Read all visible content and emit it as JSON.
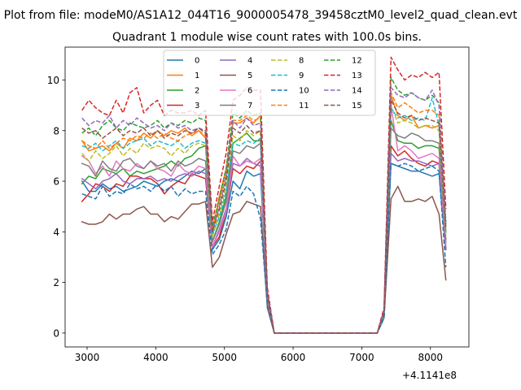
{
  "figure": {
    "suptitle": "Plot from file: modeM0/AS1A12_044T16_9000005478_39458cztM0_level2_quad_clean.evt",
    "title": "Quadrant 1 module wise count rates with 100.0s bins.",
    "offset_label": "+4.1141e8"
  },
  "chart_data": {
    "type": "line",
    "title": "Quadrant 1 module wise count rates with 100.0s bins.",
    "xlabel": "",
    "ylabel": "",
    "x_offset": 411410000,
    "xlim": [
      2680,
      8560
    ],
    "ylim": [
      -0.55,
      11.3
    ],
    "x_ticks": [
      3000,
      4000,
      5000,
      6000,
      7000,
      8000
    ],
    "y_ticks": [
      0,
      2,
      4,
      6,
      8,
      10
    ],
    "grid": false,
    "legend_position": "top-center",
    "legend_columns": 4,
    "x": [
      2925,
      3025,
      3125,
      3225,
      3325,
      3425,
      3525,
      3625,
      3725,
      3825,
      3925,
      4025,
      4125,
      4225,
      4325,
      4425,
      4525,
      4625,
      4725,
      4825,
      4925,
      5025,
      5125,
      5225,
      5325,
      5425,
      5525,
      5625,
      5725,
      5825,
      5925,
      6025,
      6125,
      6225,
      6325,
      6425,
      6525,
      6625,
      6725,
      6825,
      6925,
      7025,
      7125,
      7225,
      7325,
      7425,
      7525,
      7625,
      7725,
      7825,
      7925,
      8025,
      8125,
      8225
    ],
    "series": [
      {
        "name": "0",
        "color": "#1f77b4",
        "dash": false,
        "values": [
          6.0,
          5.6,
          5.6,
          5.9,
          5.7,
          5.8,
          5.6,
          5.7,
          5.8,
          6.0,
          5.9,
          5.8,
          6.0,
          6.1,
          6.0,
          6.2,
          6.4,
          6.3,
          6.5,
          3.3,
          3.7,
          4.6,
          6.0,
          5.7,
          6.4,
          6.2,
          6.3,
          1.3,
          0,
          0,
          0,
          0,
          0,
          0,
          0,
          0,
          0,
          0,
          0,
          0,
          0,
          0,
          0,
          0,
          0.7,
          6.7,
          6.6,
          6.5,
          6.4,
          6.4,
          6.3,
          6.2,
          6.3,
          3.3
        ]
      },
      {
        "name": "1",
        "color": "#ff7f0e",
        "dash": false,
        "values": [
          7.6,
          7.2,
          7.3,
          7.4,
          7.2,
          7.5,
          7.3,
          7.7,
          7.6,
          7.9,
          7.7,
          8.0,
          7.8,
          8.0,
          7.9,
          8.1,
          7.8,
          8.0,
          7.7,
          4.0,
          5.4,
          6.5,
          8.3,
          8.3,
          8.5,
          8.3,
          8.6,
          1.5,
          0,
          0,
          0,
          0,
          0,
          0,
          0,
          0,
          0,
          0,
          0,
          0,
          0,
          0,
          0,
          0,
          0.9,
          9.4,
          8.6,
          8.4,
          8.6,
          8.1,
          8.2,
          8.1,
          8.2,
          4.0
        ]
      },
      {
        "name": "2",
        "color": "#2ca02c",
        "dash": false,
        "values": [
          5.9,
          6.2,
          6.1,
          6.5,
          6.4,
          6.3,
          6.5,
          6.2,
          6.4,
          6.3,
          6.4,
          6.5,
          6.6,
          6.8,
          6.6,
          6.9,
          7.0,
          7.3,
          7.4,
          3.6,
          4.4,
          5.4,
          7.5,
          7.7,
          7.9,
          7.6,
          7.6,
          1.4,
          0,
          0,
          0,
          0,
          0,
          0,
          0,
          0,
          0,
          0,
          0,
          0,
          0,
          0,
          0,
          0,
          0.8,
          8.4,
          7.6,
          7.5,
          7.5,
          7.3,
          7.4,
          7.4,
          7.3,
          3.6
        ]
      },
      {
        "name": "3",
        "color": "#d62728",
        "dash": false,
        "values": [
          5.2,
          5.5,
          5.9,
          5.8,
          5.6,
          5.9,
          5.8,
          6.2,
          6.2,
          6.1,
          6.1,
          5.9,
          5.5,
          5.8,
          6.0,
          5.9,
          6.3,
          6.2,
          6.1,
          3.4,
          3.8,
          4.8,
          6.5,
          6.3,
          6.6,
          6.5,
          6.8,
          1.3,
          0,
          0,
          0,
          0,
          0,
          0,
          0,
          0,
          0,
          0,
          0,
          0,
          0,
          0,
          0,
          0,
          0.7,
          7.4,
          7.0,
          7.2,
          6.9,
          6.7,
          6.6,
          6.8,
          6.7,
          3.3
        ]
      },
      {
        "name": "4",
        "color": "#9467bd",
        "dash": false,
        "values": [
          6.1,
          5.9,
          5.7,
          6.0,
          6.1,
          6.3,
          6.0,
          5.9,
          6.1,
          6.1,
          6.2,
          6.0,
          6.1,
          6.0,
          6.2,
          6.3,
          6.2,
          6.4,
          6.3,
          3.4,
          4.1,
          4.9,
          6.7,
          6.6,
          6.9,
          6.7,
          6.6,
          1.3,
          0,
          0,
          0,
          0,
          0,
          0,
          0,
          0,
          0,
          0,
          0,
          0,
          0,
          0,
          0,
          0,
          0.7,
          7.1,
          6.8,
          6.9,
          6.8,
          6.8,
          6.7,
          6.6,
          6.7,
          3.3
        ]
      },
      {
        "name": "5",
        "color": "#8c564b",
        "dash": false,
        "values": [
          4.4,
          4.3,
          4.3,
          4.4,
          4.7,
          4.5,
          4.7,
          4.7,
          4.9,
          5.0,
          4.7,
          4.7,
          4.4,
          4.6,
          4.5,
          4.8,
          5.1,
          5.1,
          5.2,
          2.6,
          3.0,
          3.9,
          4.7,
          4.8,
          5.2,
          5.1,
          5.0,
          1.0,
          0,
          0,
          0,
          0,
          0,
          0,
          0,
          0,
          0,
          0,
          0,
          0,
          0,
          0,
          0,
          0,
          0.6,
          5.3,
          5.8,
          5.2,
          5.2,
          5.3,
          5.2,
          5.4,
          4.7,
          2.1
        ]
      },
      {
        "name": "6",
        "color": "#e377c2",
        "dash": false,
        "values": [
          7.0,
          6.8,
          6.3,
          6.6,
          6.2,
          6.8,
          6.5,
          6.4,
          6.7,
          6.5,
          6.8,
          6.5,
          6.4,
          6.2,
          6.7,
          6.4,
          6.3,
          6.6,
          6.5,
          3.4,
          4.0,
          4.8,
          7.0,
          6.6,
          6.8,
          6.7,
          6.9,
          1.3,
          0,
          0,
          0,
          0,
          0,
          0,
          0,
          0,
          0,
          0,
          0,
          0,
          0,
          0,
          0,
          0,
          0.7,
          9.0,
          7.2,
          7.4,
          7.2,
          6.9,
          7.0,
          7.1,
          6.9,
          3.5
        ]
      },
      {
        "name": "7",
        "color": "#7f7f7f",
        "dash": false,
        "values": [
          6.7,
          6.6,
          6.2,
          6.8,
          6.5,
          6.4,
          6.8,
          6.9,
          6.6,
          6.5,
          6.8,
          6.6,
          6.7,
          6.4,
          6.8,
          6.6,
          6.7,
          6.9,
          6.8,
          3.6,
          4.3,
          5.2,
          7.2,
          7.1,
          7.4,
          7.3,
          7.5,
          1.4,
          0,
          0,
          0,
          0,
          0,
          0,
          0,
          0,
          0,
          0,
          0,
          0,
          0,
          0,
          0,
          0,
          0.8,
          8.1,
          7.8,
          7.7,
          7.9,
          7.8,
          7.6,
          7.6,
          7.5,
          3.7
        ]
      },
      {
        "name": "8",
        "color": "#bcbd22",
        "dash": true,
        "values": [
          7.1,
          6.8,
          7.2,
          6.9,
          7.1,
          7.4,
          7.0,
          7.3,
          7.1,
          7.5,
          7.3,
          7.4,
          7.3,
          7.0,
          7.3,
          7.1,
          7.4,
          7.5,
          7.4,
          3.8,
          4.7,
          5.8,
          7.8,
          7.6,
          8.0,
          7.8,
          8.0,
          1.5,
          0,
          0,
          0,
          0,
          0,
          0,
          0,
          0,
          0,
          0,
          0,
          0,
          0,
          0,
          0,
          0,
          0.8,
          9.0,
          8.3,
          8.4,
          8.3,
          8.1,
          8.2,
          8.2,
          8.0,
          3.9
        ]
      },
      {
        "name": "9",
        "color": "#17becf",
        "dash": true,
        "values": [
          7.4,
          7.3,
          7.5,
          7.2,
          7.4,
          7.6,
          7.3,
          7.5,
          7.6,
          7.7,
          7.4,
          7.6,
          7.5,
          7.4,
          7.6,
          7.3,
          7.5,
          7.6,
          7.5,
          3.9,
          4.6,
          5.6,
          7.5,
          7.4,
          7.6,
          7.5,
          7.7,
          1.5,
          0,
          0,
          0,
          0,
          0,
          0,
          0,
          0,
          0,
          0,
          0,
          0,
          0,
          0,
          0,
          0,
          0.8,
          8.9,
          8.5,
          8.6,
          8.4,
          8.5,
          8.4,
          9.3,
          8.2,
          4.0
        ]
      },
      {
        "name": "10",
        "color": "#1f77b4",
        "dash": true,
        "values": [
          5.5,
          5.4,
          5.3,
          5.8,
          5.4,
          5.6,
          5.5,
          5.9,
          5.7,
          5.8,
          5.6,
          5.9,
          5.6,
          5.8,
          5.4,
          5.7,
          5.5,
          5.6,
          5.6,
          3.1,
          3.5,
          4.1,
          5.6,
          5.4,
          5.8,
          5.5,
          4.5,
          1.1,
          0,
          0,
          0,
          0,
          0,
          0,
          0,
          0,
          0,
          0,
          0,
          0,
          0,
          0,
          0,
          0,
          0.6,
          6.7,
          6.6,
          6.7,
          6.6,
          6.4,
          6.5,
          6.6,
          6.4,
          2.6
        ]
      },
      {
        "name": "11",
        "color": "#ff7f0e",
        "dash": true,
        "values": [
          7.6,
          7.4,
          7.3,
          7.6,
          7.3,
          7.5,
          7.7,
          7.6,
          7.8,
          7.7,
          7.9,
          7.7,
          7.9,
          7.7,
          7.6,
          7.8,
          7.9,
          8.0,
          7.8,
          4.1,
          5.2,
          6.3,
          8.4,
          8.4,
          8.6,
          8.4,
          8.5,
          1.6,
          0,
          0,
          0,
          0,
          0,
          0,
          0,
          0,
          0,
          0,
          0,
          0,
          0,
          0,
          0,
          0,
          0.9,
          9.5,
          8.9,
          9.1,
          8.9,
          8.7,
          8.8,
          8.8,
          8.6,
          4.2
        ]
      },
      {
        "name": "12",
        "color": "#2ca02c",
        "dash": true,
        "values": [
          7.9,
          8.1,
          7.8,
          8.2,
          8.4,
          8.1,
          8.0,
          8.3,
          8.2,
          8.1,
          8.2,
          8.4,
          8.1,
          8.3,
          8.2,
          8.4,
          8.3,
          8.5,
          8.4,
          4.2,
          5.3,
          6.5,
          8.7,
          8.5,
          8.8,
          8.6,
          8.7,
          1.6,
          0,
          0,
          0,
          0,
          0,
          0,
          0,
          0,
          0,
          0,
          0,
          0,
          0,
          0,
          0,
          0,
          0.9,
          10.1,
          9.6,
          9.4,
          9.5,
          9.3,
          9.2,
          9.4,
          9.1,
          4.4
        ]
      },
      {
        "name": "13",
        "color": "#d62728",
        "dash": true,
        "values": [
          8.8,
          9.2,
          8.9,
          8.7,
          8.6,
          9.2,
          8.7,
          9.5,
          9.7,
          8.7,
          9.0,
          9.2,
          8.6,
          8.8,
          8.7,
          8.7,
          8.8,
          8.6,
          8.8,
          4.4,
          5.8,
          7.1,
          9.2,
          9.4,
          9.7,
          9.6,
          9.6,
          1.8,
          0,
          0,
          0,
          0,
          0,
          0,
          0,
          0,
          0,
          0,
          0,
          0,
          0,
          0,
          0,
          0,
          1.0,
          10.9,
          10.4,
          10.0,
          10.2,
          10.1,
          10.3,
          10.1,
          10.3,
          4.9
        ]
      },
      {
        "name": "14",
        "color": "#9467bd",
        "dash": true,
        "values": [
          8.5,
          8.2,
          8.4,
          8.3,
          8.6,
          8.1,
          8.4,
          8.2,
          8.5,
          8.3,
          8.1,
          8.2,
          8.0,
          8.3,
          8.1,
          8.2,
          8.0,
          8.1,
          8.0,
          4.0,
          5.0,
          6.2,
          8.4,
          8.1,
          8.5,
          8.2,
          8.3,
          1.6,
          0,
          0,
          0,
          0,
          0,
          0,
          0,
          0,
          0,
          0,
          0,
          0,
          0,
          0,
          0,
          0,
          0.9,
          9.7,
          9.4,
          9.3,
          9.5,
          9.3,
          9.2,
          9.6,
          9.0,
          4.3
        ]
      },
      {
        "name": "15",
        "color": "#8c564b",
        "dash": true,
        "values": [
          8.1,
          7.9,
          8.0,
          7.7,
          7.9,
          8.1,
          7.8,
          8.0,
          7.9,
          8.1,
          7.8,
          8.0,
          7.7,
          7.9,
          7.8,
          8.0,
          7.9,
          8.1,
          7.9,
          4.0,
          4.9,
          6.0,
          8.1,
          7.9,
          8.2,
          7.9,
          8.0,
          1.5,
          0,
          0,
          0,
          0,
          0,
          0,
          0,
          0,
          0,
          0,
          0,
          0,
          0,
          0,
          0,
          0,
          0.8,
          9.2,
          8.7,
          8.5,
          8.6,
          8.4,
          8.5,
          8.4,
          8.3,
          4.1
        ]
      }
    ]
  }
}
